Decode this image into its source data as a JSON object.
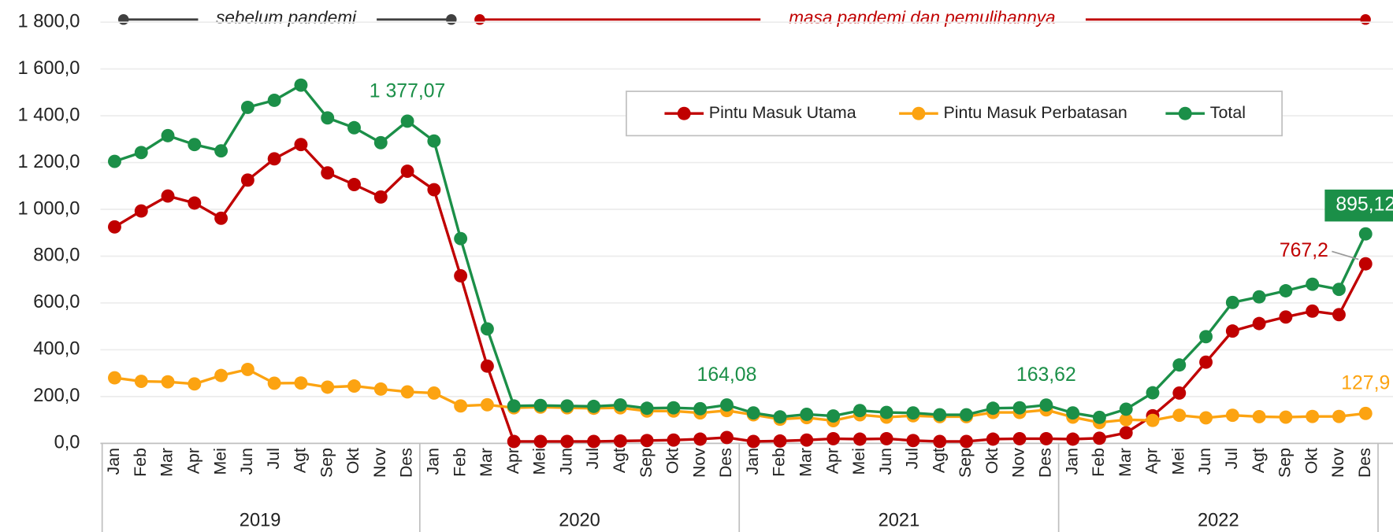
{
  "chart_data": {
    "type": "line",
    "categories": [
      "Jan",
      "Feb",
      "Mar",
      "Apr",
      "Mei",
      "Jun",
      "Jul",
      "Agt",
      "Sep",
      "Okt",
      "Nov",
      "Des",
      "Jan",
      "Feb",
      "Mar",
      "Apr",
      "Mei",
      "Jun",
      "Jul",
      "Agt",
      "Sep",
      "Okt",
      "Nov",
      "Des",
      "Jan",
      "Feb",
      "Mar",
      "Apr",
      "Mei",
      "Jun",
      "Jul",
      "Agt",
      "Sep",
      "Okt",
      "Nov",
      "Des",
      "Jan",
      "Feb",
      "Mar",
      "Apr",
      "Mei",
      "Jun",
      "Jul",
      "Agt",
      "Sep",
      "Okt",
      "Nov",
      "Des"
    ],
    "x_groups": [
      "2019",
      "2020",
      "2021",
      "2022"
    ],
    "annotations": [
      "sebelum pandemi",
      "masa pandemi dan pemulihannya"
    ],
    "ylim": [
      0,
      1800
    ],
    "yticks": [
      {
        "value": 0,
        "label": "0,0"
      },
      {
        "value": 200,
        "label": "200,0"
      },
      {
        "value": 400,
        "label": "400,0"
      },
      {
        "value": 600,
        "label": "600,0"
      },
      {
        "value": 800,
        "label": "800,0"
      },
      {
        "value": 1000,
        "label": "1 000,0"
      },
      {
        "value": 1200,
        "label": "1 200,0"
      },
      {
        "value": 1400,
        "label": "1 400,0"
      },
      {
        "value": 1600,
        "label": "1 600,0"
      },
      {
        "value": 1800,
        "label": "1 800,0"
      }
    ],
    "grid": true,
    "legend": "top-right",
    "series": [
      {
        "name": "Pintu Masuk Utama",
        "color": "#c00000",
        "values": [
          925,
          993,
          1057,
          1027,
          962,
          1125,
          1216,
          1277,
          1156,
          1106,
          1053,
          1163,
          1084,
          716,
          330,
          8,
          8,
          8,
          8,
          10,
          12,
          14,
          18,
          25,
          8,
          10,
          14,
          20,
          18,
          20,
          12,
          8,
          8,
          18,
          20,
          20,
          18,
          22,
          45,
          118,
          215,
          347,
          480,
          512,
          540,
          565,
          550,
          767.2
        ],
        "value_labels": [
          null,
          null,
          null,
          null,
          null,
          null,
          null,
          null,
          null,
          null,
          null,
          null,
          null,
          null,
          null,
          null,
          null,
          null,
          null,
          null,
          null,
          null,
          null,
          null,
          null,
          null,
          null,
          null,
          null,
          null,
          null,
          null,
          null,
          null,
          null,
          null,
          null,
          null,
          null,
          null,
          null,
          null,
          null,
          null,
          null,
          null,
          null,
          "767,2"
        ]
      },
      {
        "name": "Pintu Masuk Perbatasan",
        "color": "#fca311",
        "values": [
          280,
          265,
          263,
          254,
          290,
          316,
          257,
          258,
          240,
          245,
          232,
          220,
          215,
          160,
          165,
          152,
          155,
          152,
          150,
          152,
          138,
          138,
          130,
          140,
          122,
          103,
          110,
          97,
          122,
          112,
          118,
          114,
          114,
          132,
          132,
          143,
          112,
          89,
          101,
          98,
          120,
          109,
          120,
          114,
          112,
          115,
          115,
          127.9
        ],
        "value_labels": [
          null,
          null,
          null,
          null,
          null,
          null,
          null,
          null,
          null,
          null,
          null,
          null,
          null,
          null,
          null,
          null,
          null,
          null,
          null,
          null,
          null,
          null,
          null,
          null,
          null,
          null,
          null,
          null,
          null,
          null,
          null,
          null,
          null,
          null,
          null,
          null,
          null,
          null,
          null,
          null,
          null,
          null,
          null,
          null,
          null,
          null,
          null,
          "127,9"
        ]
      },
      {
        "name": "Total",
        "color": "#1b8f48",
        "values": [
          1205,
          1243,
          1315,
          1277,
          1250,
          1436,
          1466,
          1531,
          1391,
          1349,
          1285,
          1377.07,
          1292,
          875,
          489,
          160,
          162,
          160,
          158,
          164,
          150,
          152,
          148,
          164.08,
          130,
          113,
          124,
          117,
          140,
          132,
          130,
          122,
          122,
          150,
          152,
          163.62,
          130,
          111,
          146,
          216,
          335,
          456,
          602,
          626,
          652,
          680,
          658,
          895.12
        ],
        "value_labels": [
          null,
          null,
          null,
          null,
          null,
          null,
          null,
          null,
          null,
          null,
          null,
          "1 377,07",
          null,
          null,
          null,
          null,
          null,
          null,
          null,
          null,
          null,
          null,
          null,
          "164,08",
          null,
          null,
          null,
          null,
          null,
          null,
          null,
          null,
          null,
          null,
          null,
          "163,62",
          null,
          null,
          null,
          null,
          null,
          null,
          null,
          null,
          null,
          null,
          null,
          "895,12"
        ]
      }
    ]
  }
}
